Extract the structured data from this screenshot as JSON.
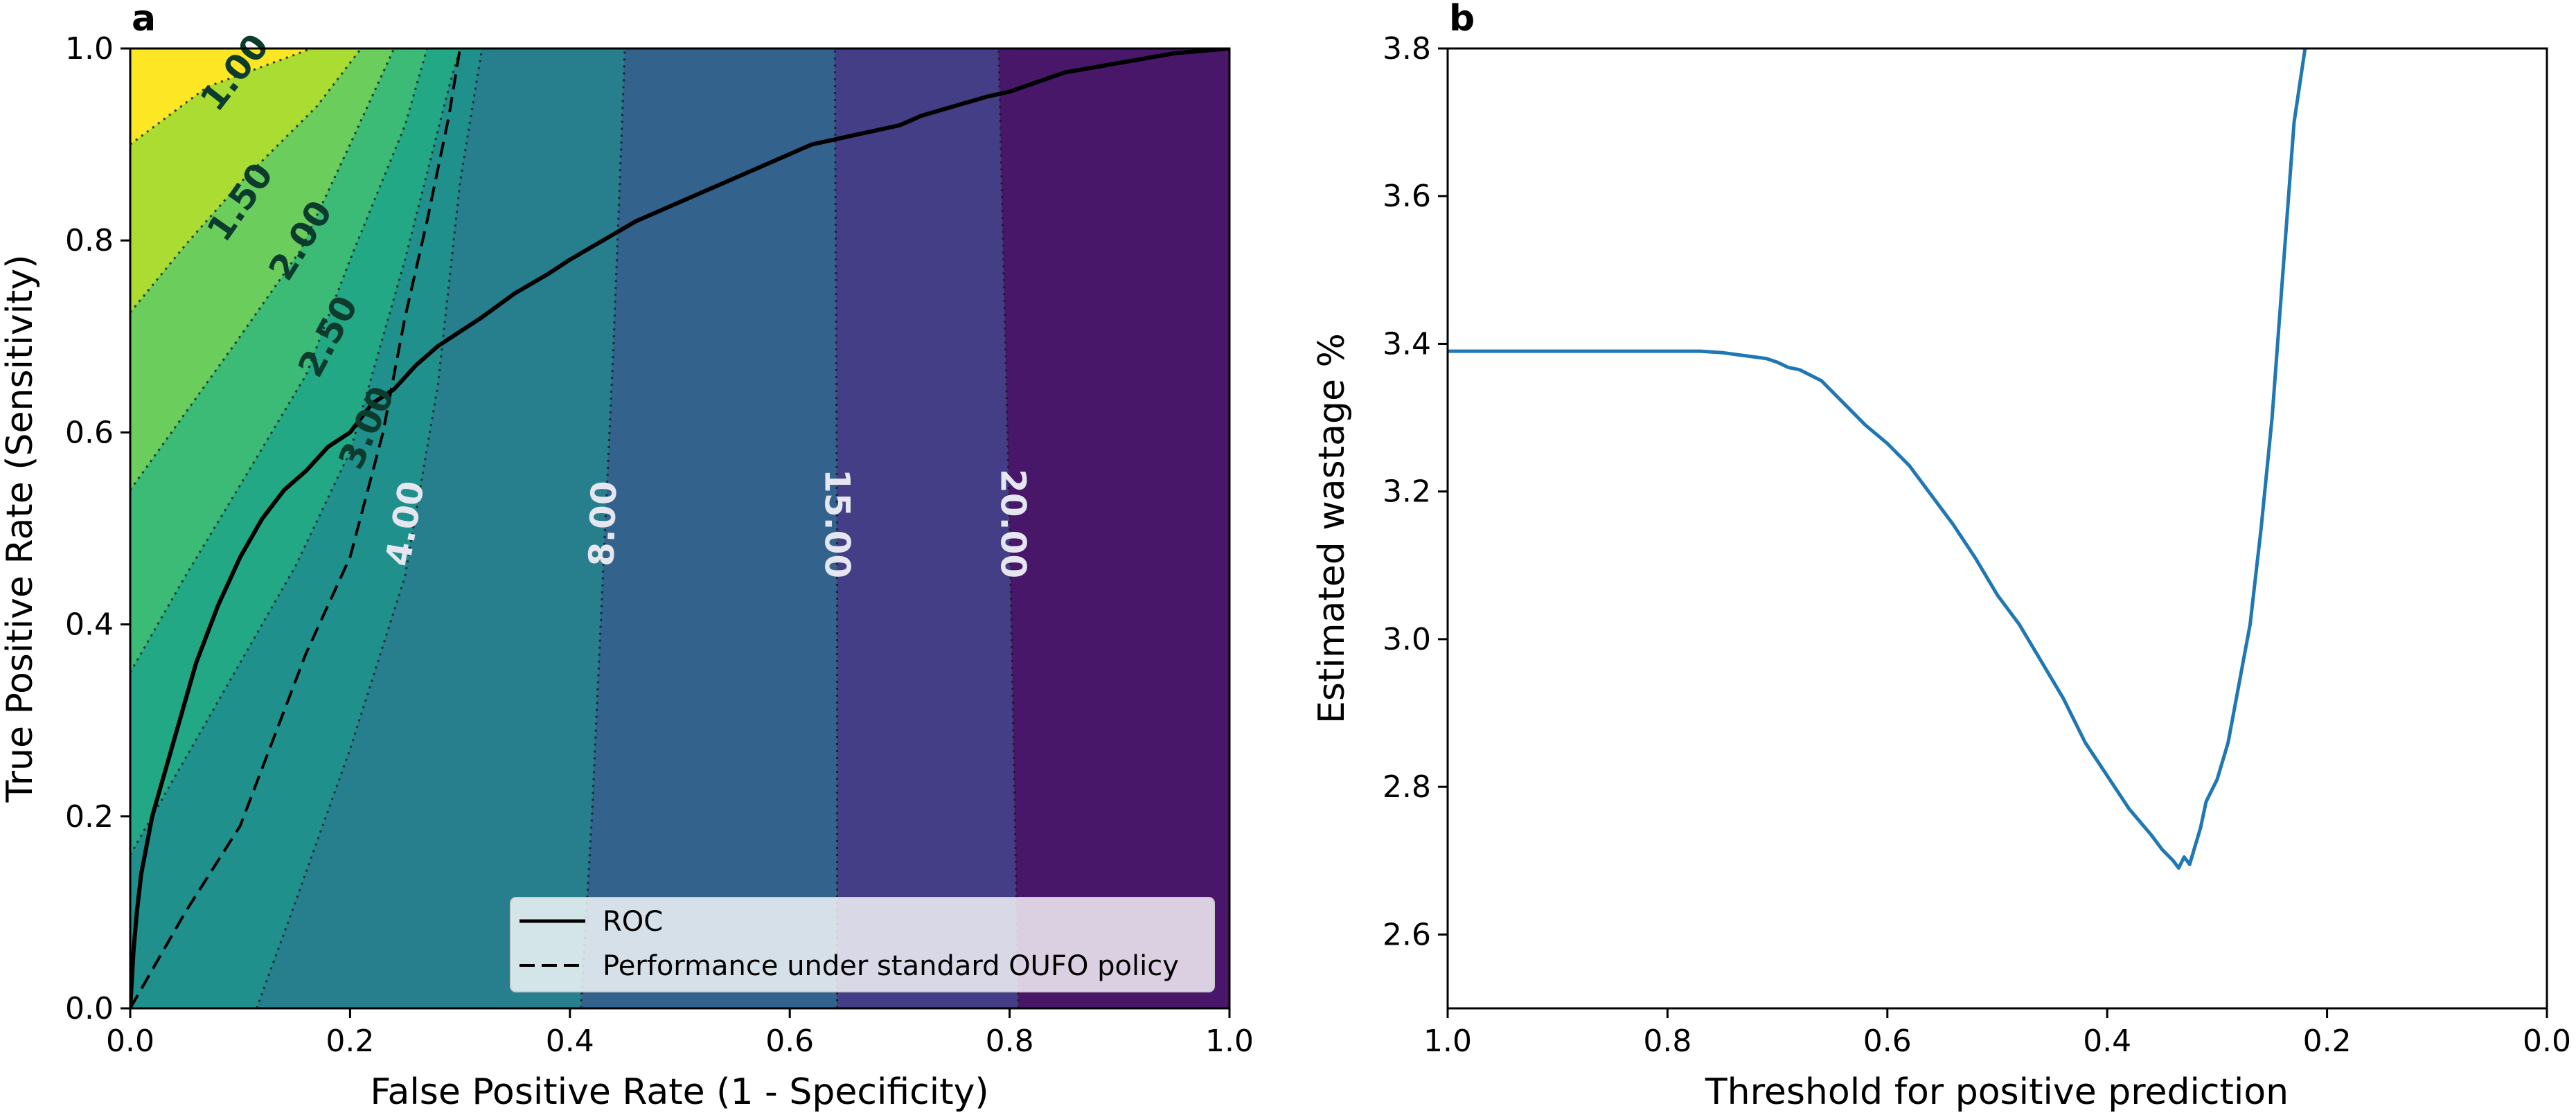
{
  "chart_data": [
    {
      "panel": "a",
      "type": "contour",
      "title": "",
      "xlabel": "False Positive Rate (1 - Specificity)",
      "ylabel": "True Positive Rate (Sensitivity)",
      "xlim": [
        0.0,
        1.0
      ],
      "ylim": [
        0.0,
        1.0
      ],
      "xticks": [
        "0.0",
        "0.2",
        "0.4",
        "0.6",
        "0.8",
        "1.0"
      ],
      "yticks": [
        "0.0",
        "0.2",
        "0.4",
        "0.6",
        "0.8",
        "1.0"
      ],
      "contour_levels": [
        {
          "label": "1.00",
          "points": [
            [
              0.0,
              0.9
            ],
            [
              0.07,
              0.96
            ],
            [
              0.165,
              1.0
            ]
          ],
          "color_above": "#e1e41f"
        },
        {
          "label": "1.50",
          "points": [
            [
              0.0,
              0.725
            ],
            [
              0.05,
              0.795
            ],
            [
              0.1,
              0.86
            ],
            [
              0.17,
              0.94
            ],
            [
              0.21,
              1.0
            ]
          ],
          "color_above": "#aadc32"
        },
        {
          "label": "2.00",
          "points": [
            [
              0.0,
              0.54
            ],
            [
              0.05,
              0.62
            ],
            [
              0.1,
              0.7
            ],
            [
              0.155,
              0.79
            ],
            [
              0.2,
              0.9
            ],
            [
              0.24,
              1.0
            ]
          ],
          "color_above": "#6bcd5c"
        },
        {
          "label": "2.50",
          "points": [
            [
              0.0,
              0.35
            ],
            [
              0.05,
              0.45
            ],
            [
              0.1,
              0.545
            ],
            [
              0.16,
              0.66
            ],
            [
              0.2,
              0.78
            ],
            [
              0.25,
              0.92
            ],
            [
              0.27,
              1.0
            ]
          ],
          "color_above": "#3bbb75"
        },
        {
          "label": "3.00",
          "points": [
            [
              0.0,
              0.16
            ],
            [
              0.05,
              0.26
            ],
            [
              0.1,
              0.36
            ],
            [
              0.15,
              0.46
            ],
            [
              0.2,
              0.58
            ],
            [
              0.25,
              0.78
            ],
            [
              0.29,
              0.96
            ],
            [
              0.3,
              1.0
            ]
          ],
          "color_above": "#22a884"
        },
        {
          "label": "4.00",
          "points": [
            [
              0.115,
              0.0
            ],
            [
              0.15,
              0.11
            ],
            [
              0.2,
              0.27
            ],
            [
              0.25,
              0.45
            ],
            [
              0.28,
              0.65
            ],
            [
              0.3,
              0.86
            ],
            [
              0.32,
              1.0
            ]
          ],
          "color_above": "#20908d"
        },
        {
          "label": "8.00",
          "points": [
            [
              0.41,
              0.0
            ],
            [
              0.42,
              0.2
            ],
            [
              0.43,
              0.45
            ],
            [
              0.44,
              0.7
            ],
            [
              0.45,
              1.0
            ]
          ],
          "color_above": "#277f8e"
        },
        {
          "label": "15.00",
          "points": [
            [
              0.643,
              0.0
            ],
            [
              0.643,
              0.5
            ],
            [
              0.641,
              1.0
            ]
          ],
          "color_above": "#33638d"
        },
        {
          "label": "20.00",
          "points": [
            [
              0.808,
              0.0
            ],
            [
              0.8,
              0.5
            ],
            [
              0.79,
              1.0
            ]
          ],
          "color_above": "#433e85"
        }
      ],
      "region_colors": [
        "#fde725",
        "#e1e41f",
        "#aadc32",
        "#6bcd5c",
        "#3bbb75",
        "#22a884",
        "#20908d",
        "#277f8e",
        "#33638d",
        "#433e85",
        "#481769"
      ],
      "series": [
        {
          "name": "ROC",
          "style": "solid",
          "x": [
            0.0,
            0.003,
            0.006,
            0.01,
            0.015,
            0.02,
            0.03,
            0.04,
            0.05,
            0.06,
            0.07,
            0.08,
            0.1,
            0.12,
            0.14,
            0.16,
            0.18,
            0.2,
            0.22,
            0.24,
            0.26,
            0.28,
            0.3,
            0.32,
            0.35,
            0.38,
            0.4,
            0.43,
            0.46,
            0.5,
            0.55,
            0.6,
            0.62,
            0.64,
            0.66,
            0.68,
            0.7,
            0.72,
            0.75,
            0.78,
            0.8,
            0.85,
            0.9,
            0.95,
            1.0
          ],
          "y": [
            0.0,
            0.06,
            0.1,
            0.14,
            0.17,
            0.2,
            0.24,
            0.28,
            0.32,
            0.36,
            0.39,
            0.42,
            0.47,
            0.51,
            0.54,
            0.56,
            0.585,
            0.6,
            0.63,
            0.645,
            0.67,
            0.69,
            0.705,
            0.72,
            0.745,
            0.765,
            0.78,
            0.8,
            0.82,
            0.84,
            0.865,
            0.89,
            0.9,
            0.905,
            0.91,
            0.915,
            0.92,
            0.93,
            0.94,
            0.95,
            0.955,
            0.975,
            0.985,
            0.995,
            1.0
          ]
        },
        {
          "name": "Performance under standard OUFO policy",
          "style": "dashed",
          "x": [
            0.0,
            0.05,
            0.1,
            0.13,
            0.16,
            0.2,
            0.23,
            0.25,
            0.27,
            0.29,
            0.3
          ],
          "y": [
            0.0,
            0.1,
            0.19,
            0.28,
            0.37,
            0.47,
            0.6,
            0.72,
            0.82,
            0.93,
            1.0
          ]
        }
      ],
      "legend": {
        "location": "lower right",
        "entries": [
          "ROC",
          "Performance under standard OUFO policy"
        ]
      }
    },
    {
      "panel": "b",
      "type": "line",
      "title": "",
      "xlabel": "Threshold for positive prediction",
      "ylabel": "Estimated wastage %",
      "xlim": [
        1.0,
        0.0
      ],
      "ylim": [
        2.5,
        3.8
      ],
      "xticks": [
        "1.0",
        "0.8",
        "0.6",
        "0.4",
        "0.2",
        "0.0"
      ],
      "yticks": [
        "2.6",
        "2.8",
        "3.0",
        "3.2",
        "3.4",
        "3.6",
        "3.8"
      ],
      "line_color": "#1f77b4",
      "series": [
        {
          "name": "wastage",
          "x": [
            1.0,
            0.9,
            0.8,
            0.77,
            0.75,
            0.72,
            0.71,
            0.7,
            0.69,
            0.68,
            0.66,
            0.64,
            0.62,
            0.6,
            0.58,
            0.56,
            0.54,
            0.52,
            0.5,
            0.48,
            0.46,
            0.44,
            0.42,
            0.4,
            0.38,
            0.36,
            0.35,
            0.34,
            0.335,
            0.33,
            0.325,
            0.32,
            0.315,
            0.31,
            0.3,
            0.29,
            0.28,
            0.27,
            0.26,
            0.25,
            0.24,
            0.235,
            0.23,
            0.225,
            0.22
          ],
          "y": [
            3.39,
            3.39,
            3.39,
            3.39,
            3.388,
            3.382,
            3.38,
            3.375,
            3.368,
            3.365,
            3.35,
            3.32,
            3.29,
            3.265,
            3.235,
            3.195,
            3.155,
            3.11,
            3.06,
            3.02,
            2.97,
            2.92,
            2.86,
            2.815,
            2.77,
            2.735,
            2.715,
            2.7,
            2.69,
            2.705,
            2.695,
            2.72,
            2.745,
            2.78,
            2.81,
            2.86,
            2.94,
            3.02,
            3.15,
            3.3,
            3.5,
            3.6,
            3.7,
            3.75,
            3.8
          ]
        }
      ]
    }
  ],
  "panel_letters": [
    "a",
    "b"
  ]
}
